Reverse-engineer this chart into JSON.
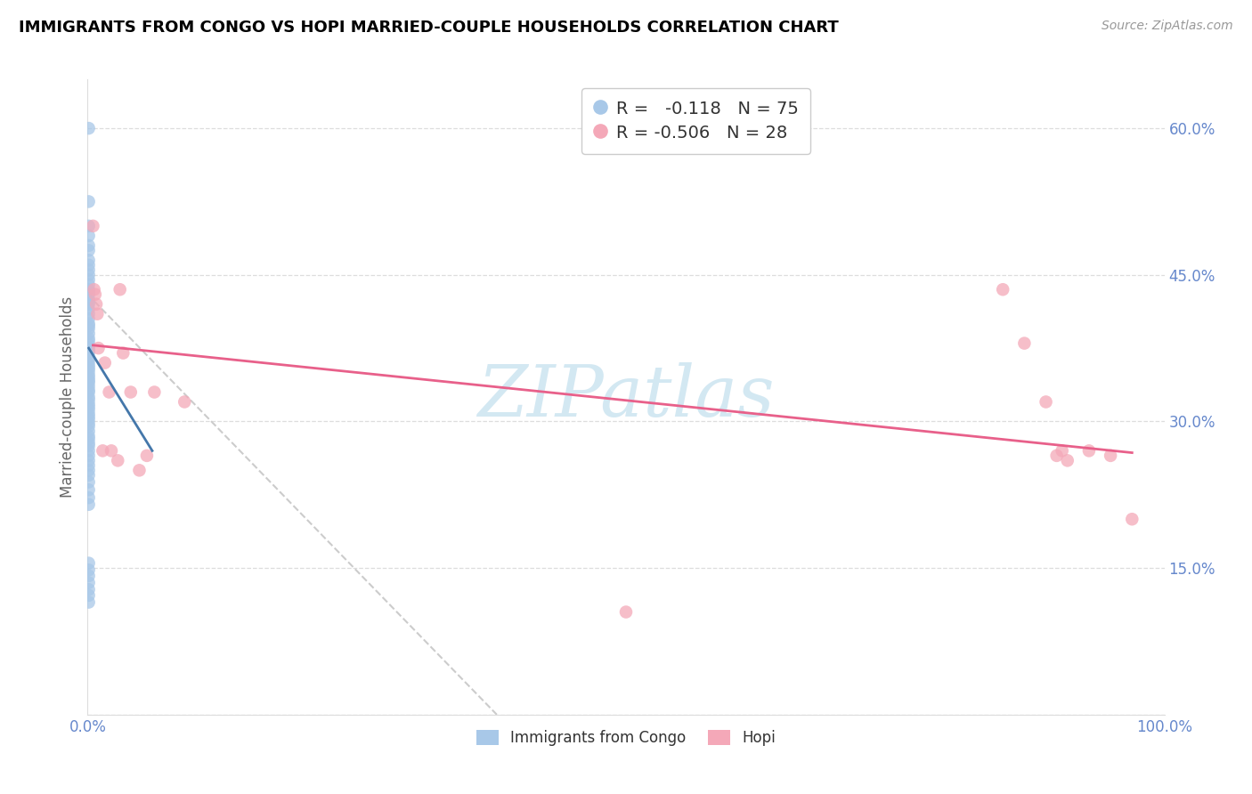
{
  "title": "IMMIGRANTS FROM CONGO VS HOPI MARRIED-COUPLE HOUSEHOLDS CORRELATION CHART",
  "source": "Source: ZipAtlas.com",
  "ylabel": "Married-couple Households",
  "xlim": [
    0.0,
    1.0
  ],
  "ylim": [
    0.0,
    0.65
  ],
  "xticks": [
    0.0,
    0.1,
    0.2,
    0.3,
    0.4,
    0.5,
    0.6,
    0.7,
    0.8,
    0.9,
    1.0
  ],
  "xticklabels": [
    "0.0%",
    "",
    "",
    "",
    "",
    "",
    "",
    "",
    "",
    "",
    "100.0%"
  ],
  "yticks": [
    0.0,
    0.15,
    0.3,
    0.45,
    0.6
  ],
  "yticklabels": [
    "",
    "15.0%",
    "30.0%",
    "45.0%",
    "60.0%"
  ],
  "legend_r1": " -0.118",
  "legend_n1": "75",
  "legend_r2": "-0.506",
  "legend_n2": "28",
  "series1_color": "#a8c8e8",
  "series2_color": "#f4a8b8",
  "trendline1_color": "#4477aa",
  "trendline2_color": "#e8608a",
  "ref_line_color": "#cccccc",
  "watermark": "ZIPatlas",
  "watermark_color": "#cce4f0",
  "grid_color": "#dddddd",
  "tick_color": "#6688cc",
  "ylabel_color": "#666666",
  "congo_x": [
    0.001,
    0.001,
    0.001,
    0.001,
    0.001,
    0.001,
    0.001,
    0.001,
    0.001,
    0.001,
    0.001,
    0.001,
    0.001,
    0.001,
    0.001,
    0.001,
    0.001,
    0.001,
    0.001,
    0.001,
    0.001,
    0.001,
    0.001,
    0.001,
    0.001,
    0.001,
    0.001,
    0.001,
    0.001,
    0.001,
    0.001,
    0.001,
    0.001,
    0.001,
    0.001,
    0.001,
    0.001,
    0.001,
    0.001,
    0.001,
    0.001,
    0.001,
    0.001,
    0.001,
    0.001,
    0.001,
    0.001,
    0.001,
    0.001,
    0.001,
    0.001,
    0.001,
    0.001,
    0.001,
    0.001,
    0.001,
    0.001,
    0.001,
    0.001,
    0.001,
    0.001,
    0.001,
    0.001,
    0.001,
    0.001,
    0.001,
    0.001,
    0.001,
    0.001,
    0.001,
    0.001,
    0.001,
    0.001,
    0.001,
    0.001
  ],
  "congo_y": [
    0.6,
    0.525,
    0.5,
    0.49,
    0.48,
    0.475,
    0.465,
    0.46,
    0.455,
    0.45,
    0.445,
    0.44,
    0.435,
    0.432,
    0.43,
    0.425,
    0.422,
    0.42,
    0.415,
    0.41,
    0.405,
    0.4,
    0.398,
    0.395,
    0.39,
    0.385,
    0.382,
    0.378,
    0.375,
    0.372,
    0.37,
    0.365,
    0.362,
    0.358,
    0.355,
    0.352,
    0.348,
    0.345,
    0.342,
    0.34,
    0.336,
    0.332,
    0.33,
    0.325,
    0.322,
    0.318,
    0.315,
    0.312,
    0.308,
    0.305,
    0.302,
    0.298,
    0.295,
    0.29,
    0.285,
    0.282,
    0.278,
    0.275,
    0.27,
    0.265,
    0.26,
    0.255,
    0.25,
    0.245,
    0.238,
    0.23,
    0.222,
    0.215,
    0.155,
    0.148,
    0.142,
    0.135,
    0.128,
    0.122,
    0.115
  ],
  "hopi_x": [
    0.005,
    0.006,
    0.007,
    0.008,
    0.009,
    0.01,
    0.014,
    0.016,
    0.02,
    0.022,
    0.028,
    0.03,
    0.033,
    0.04,
    0.048,
    0.055,
    0.062,
    0.09,
    0.5,
    0.85,
    0.87,
    0.89,
    0.9,
    0.905,
    0.91,
    0.93,
    0.95,
    0.97
  ],
  "hopi_y": [
    0.5,
    0.435,
    0.43,
    0.42,
    0.41,
    0.375,
    0.27,
    0.36,
    0.33,
    0.27,
    0.26,
    0.435,
    0.37,
    0.33,
    0.25,
    0.265,
    0.33,
    0.32,
    0.105,
    0.435,
    0.38,
    0.32,
    0.265,
    0.27,
    0.26,
    0.27,
    0.265,
    0.2
  ],
  "trendline1_x": [
    0.001,
    0.06
  ],
  "trendline1_y": [
    0.375,
    0.27
  ],
  "trendline2_x": [
    0.005,
    0.97
  ],
  "trendline2_y": [
    0.378,
    0.268
  ],
  "refline_x": [
    0.0,
    0.38
  ],
  "refline_y": [
    0.43,
    0.0
  ]
}
